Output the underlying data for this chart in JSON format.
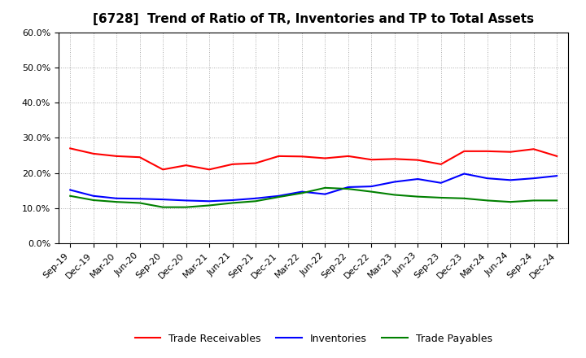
{
  "title": "[6728]  Trend of Ratio of TR, Inventories and TP to Total Assets",
  "x_labels": [
    "Sep-19",
    "Dec-19",
    "Mar-20",
    "Jun-20",
    "Sep-20",
    "Dec-20",
    "Mar-21",
    "Jun-21",
    "Sep-21",
    "Dec-21",
    "Mar-22",
    "Jun-22",
    "Sep-22",
    "Dec-22",
    "Mar-23",
    "Jun-23",
    "Sep-23",
    "Dec-23",
    "Mar-24",
    "Jun-24",
    "Sep-24",
    "Dec-24"
  ],
  "trade_receivables": [
    0.27,
    0.255,
    0.248,
    0.245,
    0.21,
    0.222,
    0.21,
    0.225,
    0.228,
    0.248,
    0.247,
    0.242,
    0.248,
    0.238,
    0.24,
    0.237,
    0.225,
    0.262,
    0.262,
    0.26,
    0.268,
    0.248
  ],
  "inventories": [
    0.152,
    0.135,
    0.128,
    0.127,
    0.125,
    0.122,
    0.12,
    0.123,
    0.128,
    0.135,
    0.147,
    0.14,
    0.16,
    0.162,
    0.175,
    0.183,
    0.172,
    0.198,
    0.185,
    0.18,
    0.185,
    0.192
  ],
  "trade_payables": [
    0.135,
    0.123,
    0.118,
    0.115,
    0.103,
    0.103,
    0.108,
    0.115,
    0.12,
    0.132,
    0.143,
    0.158,
    0.155,
    0.147,
    0.138,
    0.133,
    0.13,
    0.128,
    0.122,
    0.118,
    0.122,
    0.122
  ],
  "tr_color": "#FF0000",
  "inv_color": "#0000FF",
  "tp_color": "#008000",
  "ylim": [
    0.0,
    0.6
  ],
  "yticks": [
    0.0,
    0.1,
    0.2,
    0.3,
    0.4,
    0.5,
    0.6
  ],
  "background_color": "#FFFFFF",
  "grid_color": "#AAAAAA",
  "line_width": 1.5,
  "title_fontsize": 11,
  "tick_fontsize": 8,
  "legend_fontsize": 9
}
